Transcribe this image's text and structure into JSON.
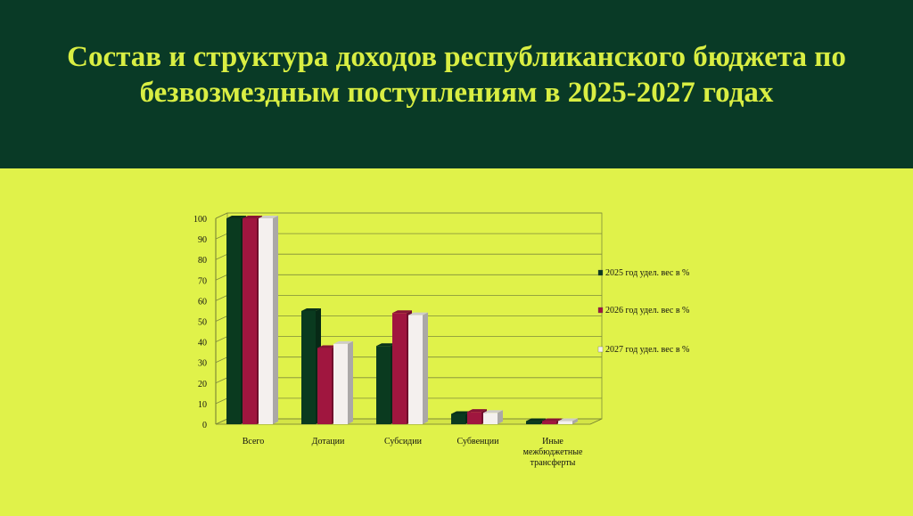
{
  "slide": {
    "title": "Состав и структура доходов республиканского бюджета по безвозмездным поступлениям в 2025-2027 годах"
  },
  "colors": {
    "header_bg": "#093a26",
    "body_bg": "#e0f24a",
    "title_text": "#d9ee43"
  },
  "chart_data": {
    "type": "bar",
    "title": "",
    "xlabel": "",
    "ylabel": "",
    "ylim": [
      0,
      100
    ],
    "yticks": [
      0,
      10,
      20,
      30,
      40,
      50,
      60,
      70,
      80,
      90,
      100
    ],
    "grid": true,
    "legend": "right",
    "style": "3d-columns",
    "categories": [
      "Всего",
      "Дотации",
      "Субсидии",
      "Субвенции",
      "Иные межбюджетные трансферты"
    ],
    "series": [
      {
        "name": "2025 год удел. вес в %",
        "color": "#0a3a1f",
        "values": [
          100,
          55,
          38,
          5,
          1.5
        ]
      },
      {
        "name": "2026 год удел. вес в %",
        "color": "#a0163f",
        "values": [
          100,
          37,
          54,
          6,
          1.5
        ]
      },
      {
        "name": "2027 год удел. вес в %",
        "color": "#f4f0ee",
        "values": [
          100,
          39,
          53,
          5.5,
          1.5
        ]
      }
    ]
  }
}
